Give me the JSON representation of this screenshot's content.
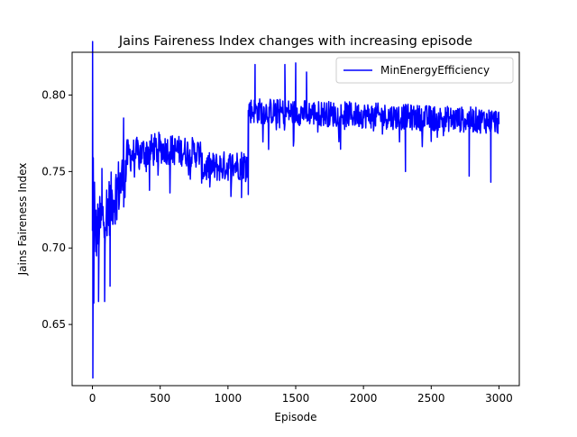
{
  "chart_data": {
    "type": "line",
    "title": "Jains Faireness Index changes with increasing episode",
    "xlabel": "Episode",
    "ylabel": "Jains Faireness Index",
    "xlim": [
      -150,
      3150
    ],
    "ylim": [
      0.61,
      0.828
    ],
    "xticks": [
      0,
      500,
      1000,
      1500,
      2000,
      2500,
      3000
    ],
    "yticks": [
      0.65,
      0.7,
      0.75,
      0.8
    ],
    "xtick_labels": [
      "0",
      "500",
      "1000",
      "1500",
      "2000",
      "2500",
      "3000"
    ],
    "ytick_labels": [
      "0.65",
      "0.70",
      "0.75",
      "0.80"
    ],
    "grid": false,
    "legend_position": "upper right",
    "series": [
      {
        "name": "MinEnergyEfficiency",
        "color": "#0000ff",
        "phases": [
          {
            "x_start": 0,
            "x_end": 250,
            "y_start": 0.705,
            "y_end": 0.75,
            "noise": 0.02
          },
          {
            "x_start": 250,
            "x_end": 500,
            "y_start": 0.76,
            "y_end": 0.765,
            "noise": 0.011
          },
          {
            "x_start": 500,
            "x_end": 800,
            "y_start": 0.765,
            "y_end": 0.762,
            "noise": 0.01
          },
          {
            "x_start": 800,
            "x_end": 1150,
            "y_start": 0.752,
            "y_end": 0.755,
            "noise": 0.01
          },
          {
            "x_start": 1150,
            "x_end": 3000,
            "y_start": 0.79,
            "y_end": 0.783,
            "noise": 0.0085
          }
        ],
        "points": [
          {
            "x": 1,
            "y": 0.835
          },
          {
            "x": 3,
            "y": 0.615
          },
          {
            "x": 6,
            "y": 0.759
          },
          {
            "x": 10,
            "y": 0.664
          },
          {
            "x": 15,
            "y": 0.743
          },
          {
            "x": 45,
            "y": 0.665
          },
          {
            "x": 70,
            "y": 0.752
          },
          {
            "x": 90,
            "y": 0.665
          },
          {
            "x": 130,
            "y": 0.675
          },
          {
            "x": 230,
            "y": 0.785
          },
          {
            "x": 1100,
            "y": 0.733
          },
          {
            "x": 1150,
            "y": 0.735
          },
          {
            "x": 1152,
            "y": 0.79
          },
          {
            "x": 1200,
            "y": 0.82
          },
          {
            "x": 1420,
            "y": 0.82
          },
          {
            "x": 1500,
            "y": 0.821
          },
          {
            "x": 1580,
            "y": 0.815
          },
          {
            "x": 2310,
            "y": 0.75
          },
          {
            "x": 2780,
            "y": 0.747
          },
          {
            "x": 2940,
            "y": 0.743
          },
          {
            "x": 3000,
            "y": 0.781
          }
        ]
      }
    ]
  }
}
